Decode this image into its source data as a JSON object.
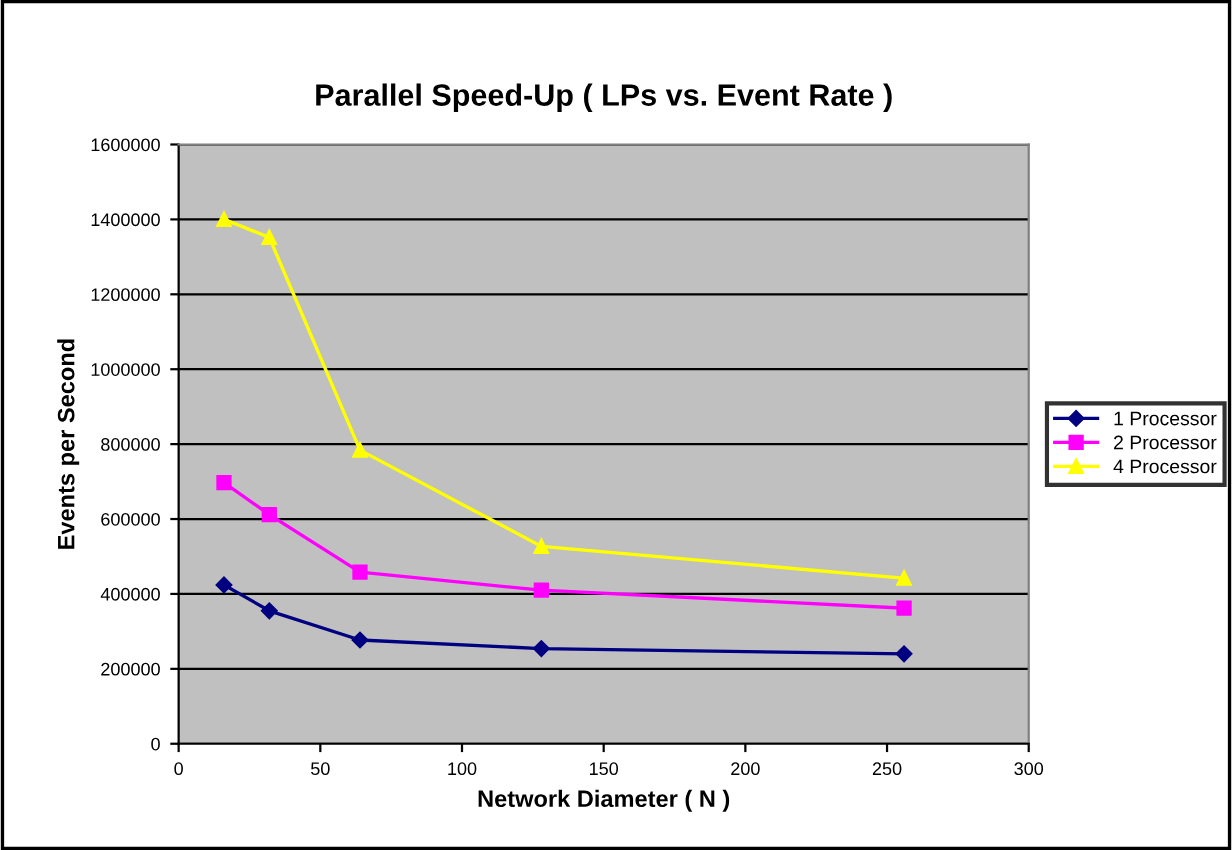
{
  "chart_data": {
    "type": "line",
    "title": "Parallel Speed-Up ( LPs vs. Event Rate )",
    "xlabel": "Network Diameter ( N )",
    "ylabel": "Events per Second",
    "x": [
      16,
      32,
      64,
      128,
      256
    ],
    "series": [
      {
        "name": "1 Processor",
        "color": "#000080",
        "marker": "diamond",
        "values": [
          424000,
          355000,
          277000,
          254000,
          240000
        ]
      },
      {
        "name": "2 Processor",
        "color": "#ff00ff",
        "marker": "square",
        "values": [
          697000,
          612000,
          458000,
          410000,
          362000
        ]
      },
      {
        "name": "4 Processor",
        "color": "#ffff00",
        "marker": "triangle",
        "values": [
          1400000,
          1352000,
          784000,
          527000,
          442000
        ]
      }
    ],
    "xlim": [
      0,
      300
    ],
    "xticks": [
      0,
      50,
      100,
      150,
      200,
      250,
      300
    ],
    "ylim": [
      0,
      1600000
    ],
    "yticks": [
      0,
      200000,
      400000,
      600000,
      800000,
      1000000,
      1200000,
      1400000,
      1600000
    ],
    "grid": "y",
    "legend": "right",
    "line_style": "solid"
  }
}
